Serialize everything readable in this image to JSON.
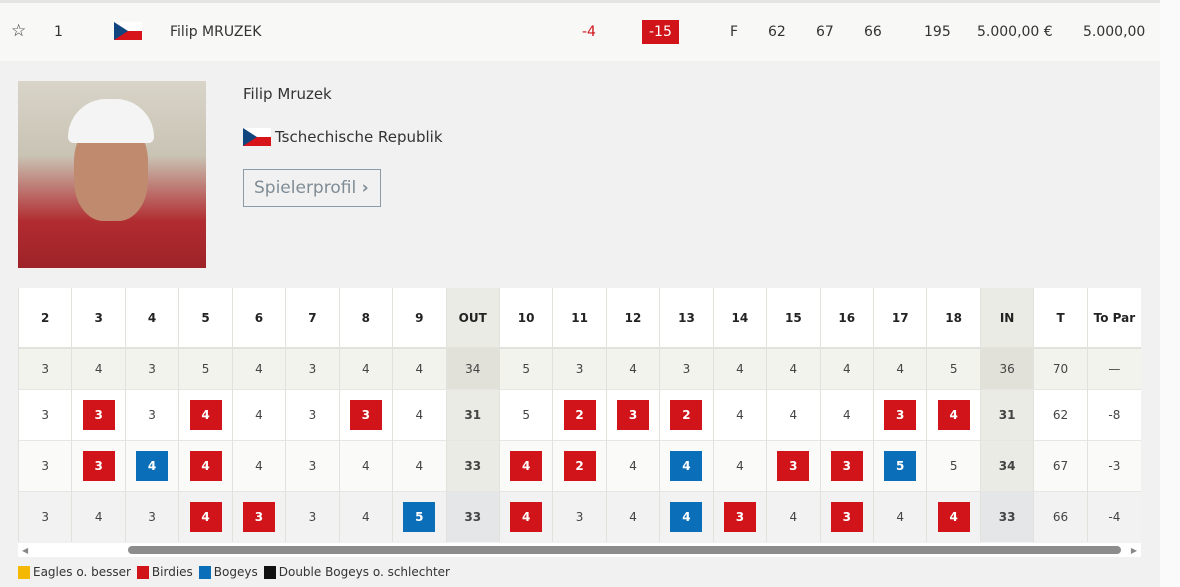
{
  "summary": {
    "position": "1",
    "name": "Filip MRUZEK",
    "today": "-4",
    "to_par": "-15",
    "thru": "F",
    "r1": "62",
    "r2": "67",
    "r3": "66",
    "total": "195",
    "money": "5.000,00 €",
    "points": "5.000,00"
  },
  "player": {
    "name": "Filip Mruzek",
    "country": "Tschechische Republik",
    "profile_button": "Spielerprofil"
  },
  "scorecard": {
    "headers": [
      "2",
      "3",
      "4",
      "5",
      "6",
      "7",
      "8",
      "9",
      "OUT",
      "10",
      "11",
      "12",
      "13",
      "14",
      "15",
      "16",
      "17",
      "18",
      "IN",
      "T",
      "To Par"
    ],
    "par": [
      "3",
      "4",
      "3",
      "5",
      "4",
      "3",
      "4",
      "4",
      "34",
      "5",
      "3",
      "4",
      "3",
      "4",
      "4",
      "4",
      "4",
      "5",
      "36",
      "70",
      "—"
    ],
    "rounds": [
      {
        "scores": [
          "3",
          "3",
          "3",
          "4",
          "4",
          "3",
          "3",
          "4",
          "31",
          "5",
          "2",
          "3",
          "2",
          "4",
          "4",
          "4",
          "3",
          "4",
          "31",
          "62",
          "-8"
        ],
        "marks": [
          "",
          "b",
          "",
          "b",
          "",
          "",
          "b",
          "",
          "",
          "",
          "b",
          "b",
          "b",
          "",
          "",
          "",
          "b",
          "b",
          "",
          "",
          ""
        ]
      },
      {
        "scores": [
          "3",
          "3",
          "4",
          "4",
          "4",
          "3",
          "4",
          "4",
          "33",
          "4",
          "2",
          "4",
          "4",
          "4",
          "3",
          "3",
          "5",
          "5",
          "34",
          "67",
          "-3"
        ],
        "marks": [
          "",
          "b",
          "o",
          "b",
          "",
          "",
          "",
          "",
          "",
          "b",
          "b",
          "",
          "o",
          "",
          "b",
          "b",
          "o",
          "",
          "",
          "",
          ""
        ]
      },
      {
        "scores": [
          "3",
          "4",
          "3",
          "4",
          "3",
          "3",
          "4",
          "5",
          "33",
          "4",
          "3",
          "4",
          "4",
          "3",
          "4",
          "3",
          "4",
          "4",
          "33",
          "66",
          "-4"
        ],
        "marks": [
          "",
          "",
          "",
          "b",
          "b",
          "",
          "",
          "o",
          "",
          "b",
          "",
          "",
          "o",
          "b",
          "",
          "b",
          "",
          "b",
          "",
          "",
          ""
        ]
      }
    ]
  },
  "legend": [
    {
      "label": "Eagles o. besser",
      "color": "#f5b800"
    },
    {
      "label": "Birdies",
      "color": "#d0141a"
    },
    {
      "label": "Bogeys",
      "color": "#0a6fb8"
    },
    {
      "label": "Double Bogeys o. schlechter",
      "color": "#111111"
    }
  ]
}
